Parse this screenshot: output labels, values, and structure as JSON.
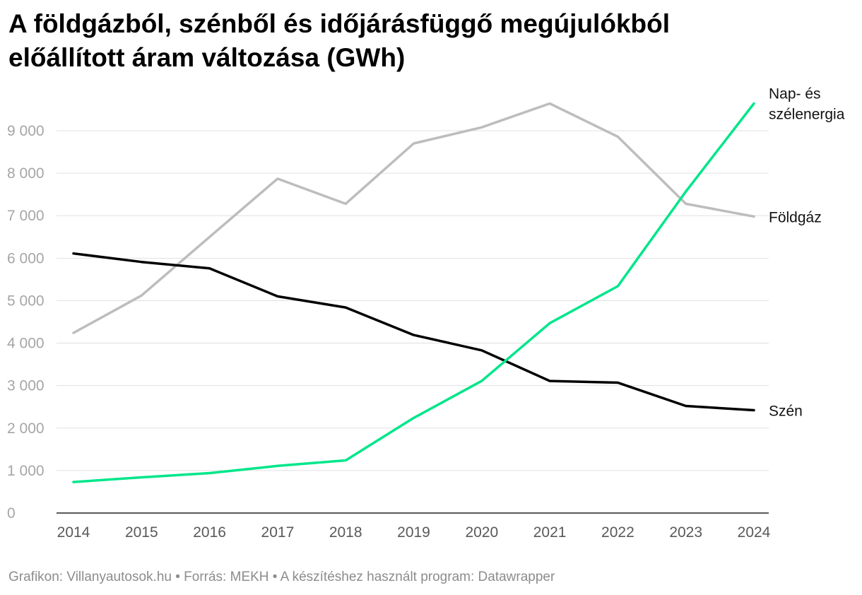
{
  "title_lines": [
    "A földgázból, szénből és időjárásfüggő megújulókból",
    "előállított áram változása (GWh)"
  ],
  "footer": "Grafikon: Villanyautosok.hu • Forrás: MEKH • A készítéshez használt program: Datawrapper",
  "chart_data": {
    "type": "line",
    "title": "A földgázból, szénből és időjárásfüggő megújulókból előállított áram változása (GWh)",
    "x": [
      2014,
      2015,
      2016,
      2017,
      2018,
      2019,
      2020,
      2021,
      2022,
      2023,
      2024
    ],
    "ylim": [
      0,
      9000
    ],
    "yticks": [
      0,
      1000,
      2000,
      3000,
      4000,
      5000,
      6000,
      7000,
      8000,
      9000
    ],
    "ytick_labels": [
      "0",
      "1 000",
      "2 000",
      "3 000",
      "4 000",
      "5 000",
      "6 000",
      "7 000",
      "8 000",
      "9 000"
    ],
    "grid": true,
    "series": [
      {
        "name": "Földgáz",
        "label_lines": [
          "Földgáz"
        ],
        "color": "#bdbdbd",
        "values": [
          4240,
          5120,
          6500,
          7870,
          7280,
          8700,
          9080,
          9640,
          8860,
          7280,
          6980
        ]
      },
      {
        "name": "Szén",
        "label_lines": [
          "Szén"
        ],
        "color": "#000000",
        "values": [
          6110,
          5910,
          5760,
          5100,
          4840,
          4190,
          3830,
          3110,
          3070,
          2520,
          2420
        ]
      },
      {
        "name": "Nap- és szélenergia",
        "label_lines": [
          "Nap- és",
          "szélenergia"
        ],
        "color": "#00e68a",
        "values": [
          730,
          840,
          940,
          1110,
          1240,
          2240,
          3110,
          4470,
          5340,
          7570,
          9640
        ]
      }
    ]
  }
}
